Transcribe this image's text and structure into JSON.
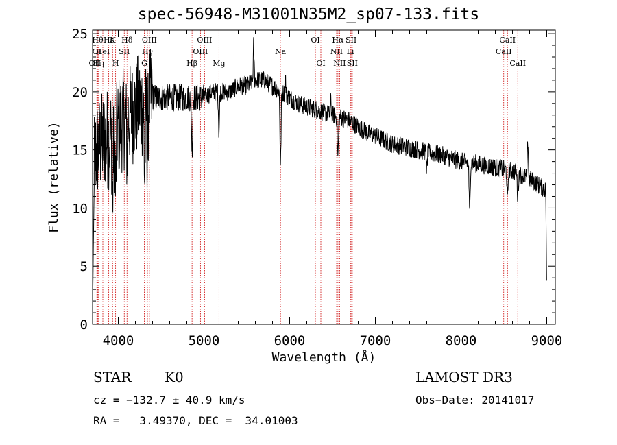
{
  "chart_data": {
    "type": "line",
    "title": "spec-56948-M31001N35M2_sp07-133.fits",
    "xlabel": "Wavelength (Å)",
    "ylabel": "Flux (relative)",
    "xlim": [
      3700,
      9100
    ],
    "ylim": [
      0,
      25.3
    ],
    "xticks": [
      4000,
      5000,
      6000,
      7000,
      8000,
      9000
    ],
    "yticks": [
      0,
      5,
      10,
      15,
      20,
      25
    ],
    "continuum": {
      "x": [
        3700,
        3750,
        3800,
        3850,
        3900,
        3950,
        4000,
        4050,
        4100,
        4150,
        4200,
        4250,
        4300,
        4350,
        4400,
        4450,
        4500,
        4600,
        4700,
        4800,
        4900,
        5000,
        5100,
        5200,
        5300,
        5400,
        5500,
        5600,
        5700,
        5800,
        5900,
        6000,
        6100,
        6200,
        6300,
        6400,
        6500,
        6600,
        6700,
        6800,
        6900,
        7000,
        7200,
        7400,
        7600,
        7800,
        8000,
        8200,
        8400,
        8600,
        8800,
        9000
      ],
      "y": [
        14,
        15,
        15.5,
        16,
        16,
        16.5,
        17,
        17.5,
        18,
        18,
        18.5,
        19,
        18.5,
        19,
        19.5,
        19.5,
        19.5,
        19.5,
        19.5,
        19.5,
        19.5,
        19.5,
        20,
        20,
        20,
        20.5,
        20.5,
        21,
        21,
        20.5,
        20,
        19.5,
        19,
        18.7,
        18.5,
        18.2,
        18,
        17.8,
        17.5,
        17,
        16.5,
        16.2,
        15.5,
        15.2,
        14.8,
        14.5,
        14.0,
        13.8,
        13.5,
        13.2,
        12.5,
        11.5
      ]
    },
    "absorption_features": [
      {
        "x": 3934,
        "depth": 5.5
      },
      {
        "x": 3969,
        "depth": 5
      },
      {
        "x": 4102,
        "depth": 3
      },
      {
        "x": 4308,
        "depth": 6
      },
      {
        "x": 4340,
        "depth": 4
      },
      {
        "x": 4861,
        "depth": 4.5
      },
      {
        "x": 5175,
        "depth": 3.5
      },
      {
        "x": 5893,
        "depth": 6.5
      },
      {
        "x": 6563,
        "depth": 3.5
      },
      {
        "x": 7600,
        "depth": 1.5
      },
      {
        "x": 8100,
        "depth": 4.5
      },
      {
        "x": 8542,
        "depth": 2.5
      },
      {
        "x": 8662,
        "depth": 2
      }
    ],
    "spike_features": [
      {
        "x": 5580,
        "height": 3.2
      },
      {
        "x": 5950,
        "height": 1.5
      },
      {
        "x": 6480,
        "height": 1.2
      },
      {
        "x": 8780,
        "height": 3.3
      },
      {
        "x": 9000,
        "height": -9
      }
    ],
    "lines": [
      {
        "x": 3727,
        "label": "OII",
        "row": 2
      },
      {
        "x": 3750,
        "label": "OI",
        "row": 1
      },
      {
        "x": 3760,
        "label": "Hθ",
        "row": 0
      },
      {
        "x": 3770,
        "label": "Hη",
        "row": 2
      },
      {
        "x": 3820,
        "label": "HeI",
        "row": 1
      },
      {
        "x": 3889,
        "label": "Hε",
        "row": 0
      },
      {
        "x": 3934,
        "label": "K",
        "row": 0
      },
      {
        "x": 3969,
        "label": "H",
        "row": 2
      },
      {
        "x": 4070,
        "label": "SII",
        "row": 1
      },
      {
        "x": 4102,
        "label": "Hδ",
        "row": 0
      },
      {
        "x": 4304,
        "label": "G",
        "row": 2
      },
      {
        "x": 4340,
        "label": "Hγ",
        "row": 1
      },
      {
        "x": 4363,
        "label": "OIII",
        "row": 0
      },
      {
        "x": 4861,
        "label": "Hβ",
        "row": 2
      },
      {
        "x": 4959,
        "label": "OIII",
        "row": 1
      },
      {
        "x": 5007,
        "label": "OIII",
        "row": 0
      },
      {
        "x": 5175,
        "label": "Mg",
        "row": 2
      },
      {
        "x": 5893,
        "label": "Na",
        "row": 1
      },
      {
        "x": 6300,
        "label": "OI",
        "row": 0
      },
      {
        "x": 6364,
        "label": "OI",
        "row": 2
      },
      {
        "x": 6548,
        "label": "NII",
        "row": 1
      },
      {
        "x": 6563,
        "label": "Hα",
        "row": 0
      },
      {
        "x": 6583,
        "label": "NII",
        "row": 2
      },
      {
        "x": 6708,
        "label": "Li",
        "row": 1
      },
      {
        "x": 6717,
        "label": "SII",
        "row": 0
      },
      {
        "x": 6731,
        "label": "SII",
        "row": 2
      },
      {
        "x": 8498,
        "label": "CaII",
        "row": 1
      },
      {
        "x": 8542,
        "label": "CaII",
        "row": 0
      },
      {
        "x": 8662,
        "label": "CaII",
        "row": 2
      }
    ],
    "colors": {
      "line_marker": "#cc0000",
      "spectrum": "#000000",
      "axes": "#000000"
    }
  },
  "info": {
    "object_type": "STAR",
    "subclass": "K0",
    "survey": "LAMOST DR3",
    "redshift": "cz = −132.7 ± 40.9 km/s",
    "obs_date": "Obs−Date: 20141017",
    "coords": "RA =   3.49370, DEC =  34.01003"
  }
}
